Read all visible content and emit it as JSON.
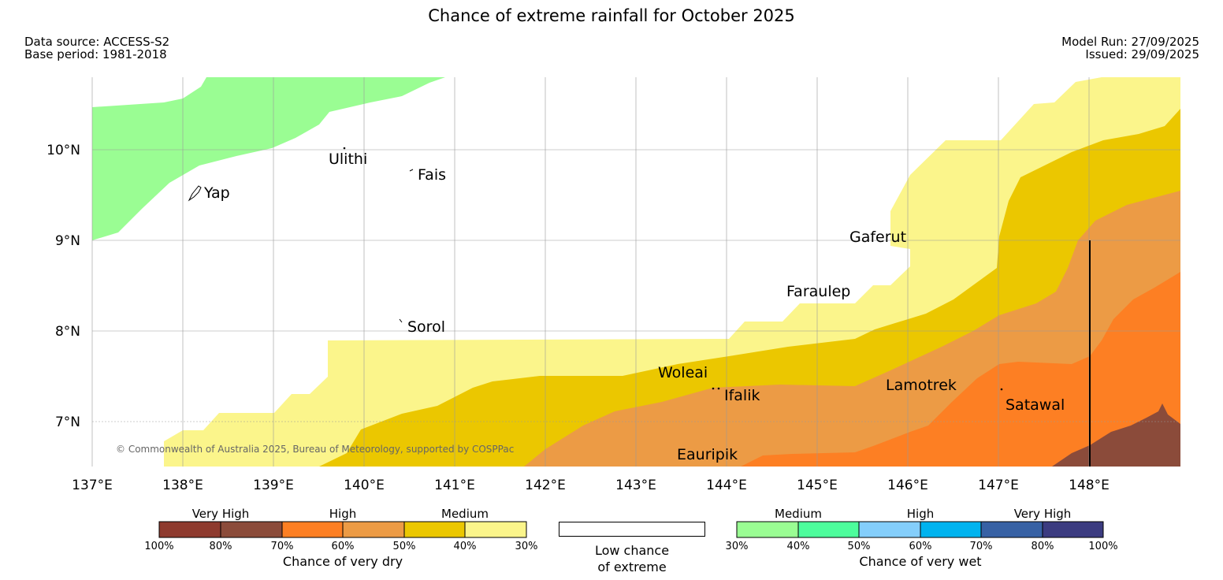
{
  "title": "Chance of extreme rainfall for October 2025",
  "header": {
    "data_source": "Data source: ACCESS-S2",
    "base_period": "Base period: 1981-2018",
    "model_run": "Model Run: 27/09/2025",
    "issued": "Issued: 29/09/2025"
  },
  "map": {
    "lon_ticks": [
      "137°E",
      "138°E",
      "139°E",
      "140°E",
      "141°E",
      "142°E",
      "143°E",
      "144°E",
      "145°E",
      "146°E",
      "147°E",
      "148°E"
    ],
    "lat_ticks": [
      "10°N",
      "9°N",
      "8°N",
      "7°N"
    ],
    "places": [
      "Ulithi",
      "Fais",
      "Yap",
      "Gaferut",
      "Faraulep",
      "Sorol",
      "Woleai",
      "Ifalik",
      "Lamotrek",
      "Satawal",
      "Eauripik"
    ],
    "copyright": "© Commonwealth of Australia 2025, Bureau of Meteorology, supported by COSPPac"
  },
  "legend": {
    "dry": {
      "categories": [
        "Very High",
        "High",
        "Medium"
      ],
      "percent_labels": [
        "100%",
        "80%",
        "70%",
        "60%",
        "50%",
        "40%",
        "30%"
      ],
      "colors": [
        "#8e3a2e",
        "#8b4b3a",
        "#fd7f23",
        "#ec9b45",
        "#ebc700",
        "#fbf58b"
      ],
      "title": "Chance of very dry"
    },
    "low": {
      "line1": "Low chance",
      "line2": "of extreme"
    },
    "wet": {
      "categories": [
        "Medium",
        "High",
        "Very High"
      ],
      "percent_labels": [
        "30%",
        "40%",
        "50%",
        "60%",
        "70%",
        "80%",
        "100%"
      ],
      "colors": [
        "#9afd93",
        "#4dfd9c",
        "#84cefb",
        "#00b3ef",
        "#3761a4",
        "#3b3b80"
      ],
      "title": "Chance of very wet"
    }
  },
  "colors": {
    "wet_medium_30_40": "#9afd93",
    "dry_medium_30_40": "#fbf58b",
    "dry_medium_40_50": "#ebc700",
    "dry_high_50_60": "#ec9b45",
    "dry_high_60_70": "#fd7f23",
    "dry_very_high_80_100": "#8b4b3a"
  }
}
